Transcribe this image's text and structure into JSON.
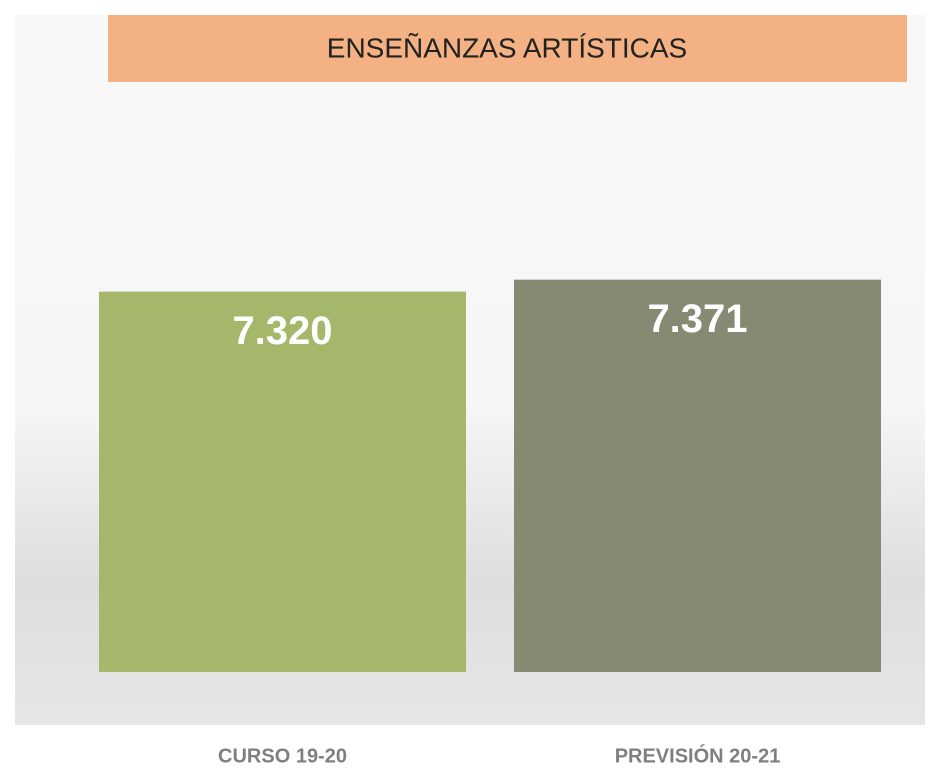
{
  "chart_data": {
    "type": "bar",
    "title": "ENSEÑANZAS ARTÍSTICAS",
    "categories": [
      "CURSO 19-20",
      "PREVISIÓN 20-21"
    ],
    "values": [
      7320,
      7371
    ],
    "value_labels": [
      "7.320",
      "7.371"
    ],
    "colors": [
      "#a5b76a",
      "#878a73"
    ],
    "ylim": [
      5700,
      8000
    ]
  }
}
